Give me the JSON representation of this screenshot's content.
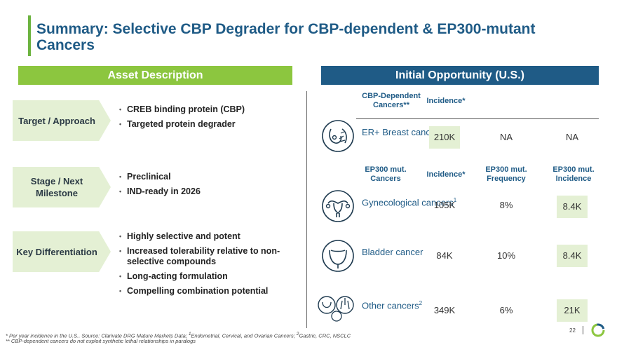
{
  "title": "Summary: Selective CBP Degrader for CBP-dependent & EP300-mutant Cancers",
  "left": {
    "header": "Asset Description",
    "sections": [
      {
        "label": "Target / Approach",
        "bullets": [
          "CREB binding protein (CBP)",
          "Targeted protein degrader"
        ]
      },
      {
        "label": "Stage / Next Milestone",
        "bullets": [
          "Preclinical",
          "IND-ready in 2026"
        ]
      },
      {
        "label": "Key Differentiation",
        "bullets": [
          "Highly selective and potent",
          "Increased tolerability relative to non-selective compounds",
          "Long-acting formulation",
          "Compelling combination potential"
        ]
      }
    ]
  },
  "right": {
    "header": "Initial Opportunity (U.S.)",
    "table1_headers": [
      "CBP-Dependent Cancers**",
      "Incidence*"
    ],
    "row_breast": {
      "label": "ER+ Breast cancer",
      "incidence": "210K",
      "freq": "NA",
      "ep_inc": "NA"
    },
    "table2_headers": [
      "EP300 mut. Cancers",
      "Incidence*",
      "EP300 mut. Frequency",
      "EP300 mut. Incidence"
    ],
    "rows": [
      {
        "label": "Gynecological cancers",
        "sup": "1",
        "incidence": "105K",
        "freq": "8%",
        "ep_inc": "8.4K"
      },
      {
        "label": "Bladder cancer",
        "sup": "",
        "incidence": "84K",
        "freq": "10%",
        "ep_inc": "8.4K"
      },
      {
        "label": "Other cancers",
        "sup": "2",
        "incidence": "349K",
        "freq": "6%",
        "ep_inc": "21K"
      }
    ]
  },
  "footnotes": {
    "line1_a": "* Per year incidence in the U.S.. Source: Clarivate DRG Mature Markets Data; ",
    "line1_sup1": "1",
    "line1_b": "Endometrial, Cervical, and Ovarian Cancers; ",
    "line1_sup2": "2",
    "line1_c": "Gastric, CRC, NSCLC",
    "line2": "** CBP-dependent cancers do not exploit synthetic lethal relationships in paralogs"
  },
  "page_number": "22",
  "colors": {
    "green": "#8cc63f",
    "light_green": "#e4f0d4",
    "blue": "#1f5b86"
  }
}
